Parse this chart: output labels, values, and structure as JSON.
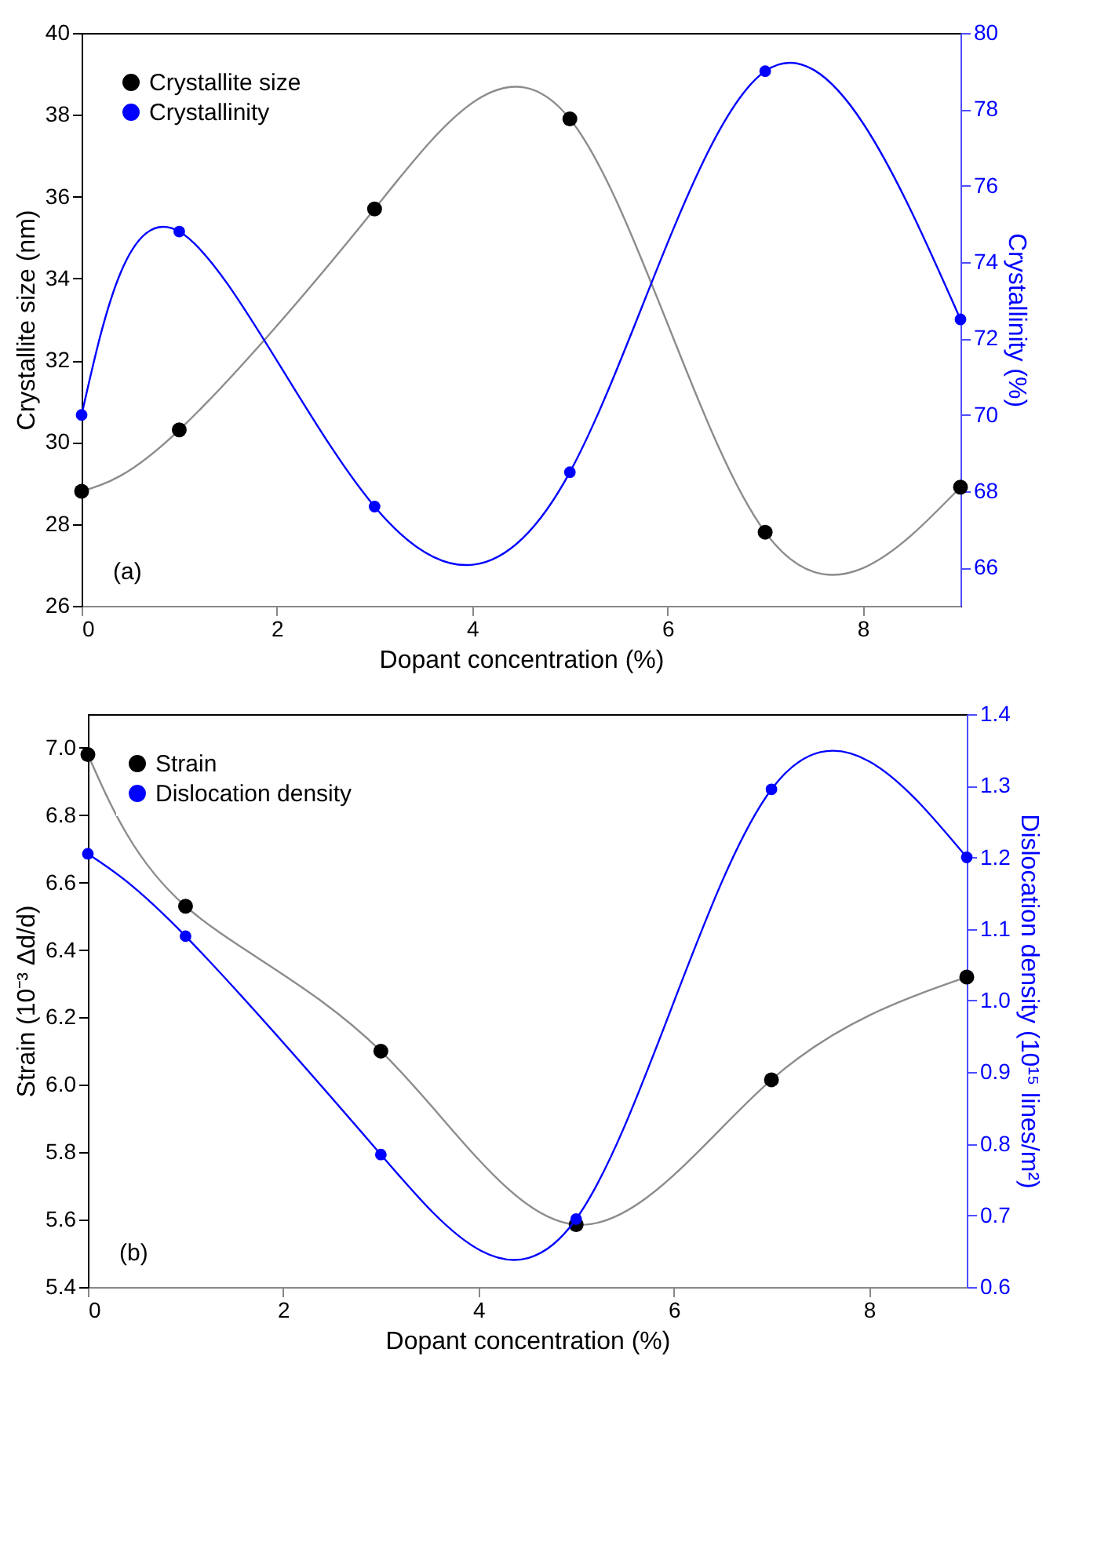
{
  "chart_data": [
    {
      "type": "line",
      "xlabel": "Dopant concentration  (%)",
      "ylabel": "Crystallite size (nm)",
      "y2label": "Crystallinity (%)",
      "x": [
        0,
        1,
        3,
        5,
        7,
        9
      ],
      "xlim": [
        0,
        9
      ],
      "xticks": [
        0,
        2,
        4,
        6,
        8
      ],
      "ylim": [
        26,
        40
      ],
      "yticks": [
        26,
        28,
        30,
        32,
        34,
        36,
        38,
        40
      ],
      "y2lim": [
        65,
        80
      ],
      "y2ticks": [
        66,
        68,
        70,
        72,
        74,
        76,
        78,
        80
      ],
      "marker": "circle",
      "legend": "top left",
      "annotations": [
        "(a)"
      ],
      "series": [
        {
          "name": "Crystallite size",
          "color": "#000000",
          "values": [
            28.8,
            30.3,
            35.7,
            37.9,
            27.8,
            28.9
          ]
        },
        {
          "name": "Crystallinity",
          "color": "#0000ff",
          "axis": "y2",
          "values": [
            70.0,
            74.8,
            67.6,
            68.5,
            79.0,
            72.5
          ]
        }
      ]
    },
    {
      "type": "line",
      "xlabel": "Dopant concentration  (%)",
      "ylabel": "Strain (10⁻³ Δd/d)",
      "y2label": "Dislocation density (10¹⁵ lines/m²)",
      "x": [
        0,
        1,
        3,
        5,
        7,
        9
      ],
      "xlim": [
        0,
        9
      ],
      "xticks": [
        0,
        2,
        4,
        6,
        8
      ],
      "ylim": [
        5.4,
        7.1
      ],
      "yticks": [
        5.4,
        5.6,
        5.8,
        {
          "value": 6.0,
          "label": "6.0"
        },
        6.2,
        6.4,
        6.6,
        6.8,
        {
          "value": 7.0,
          "label": "7.0"
        }
      ],
      "y2lim": [
        0.6,
        1.4
      ],
      "y2ticks": [
        0.6,
        0.7,
        0.8,
        0.9,
        {
          "value": 1.0,
          "label": "1.0"
        },
        1.1,
        1.2,
        1.3,
        1.4
      ],
      "marker": "circle",
      "legend": "top left",
      "annotations": [
        "(b)"
      ],
      "series": [
        {
          "name": "Strain",
          "color": "#000000",
          "values": [
            6.98,
            6.53,
            6.1,
            5.585,
            6.015,
            6.32
          ]
        },
        {
          "name": "Dislocation density",
          "color": "#0000ff",
          "axis": "y2",
          "values": [
            1.205,
            1.09,
            0.785,
            0.695,
            1.295,
            1.2
          ]
        }
      ]
    }
  ]
}
